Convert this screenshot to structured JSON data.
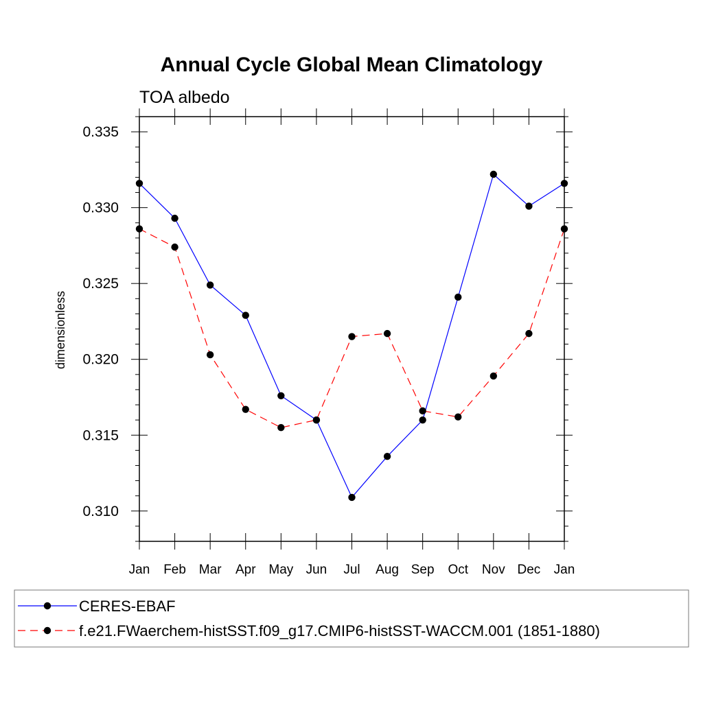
{
  "chart_data": {
    "type": "line",
    "title": "Annual Cycle Global Mean Climatology",
    "subtitle": "TOA albedo",
    "xlabel": "",
    "ylabel": "dimensionless",
    "categories": [
      "Jan",
      "Feb",
      "Mar",
      "Apr",
      "May",
      "Jun",
      "Jul",
      "Aug",
      "Sep",
      "Oct",
      "Nov",
      "Dec",
      "Jan"
    ],
    "ylim": [
      0.308,
      0.336
    ],
    "yticks": [
      "0.310",
      "0.315",
      "0.320",
      "0.325",
      "0.330",
      "0.335"
    ],
    "grid": false,
    "legend_position": "bottom",
    "series": [
      {
        "name": "CERES-EBAF",
        "color": "#0000ff",
        "line_style": "solid",
        "marker": "filled-circle",
        "values": [
          0.3316,
          0.3293,
          0.3249,
          0.3229,
          0.3176,
          0.316,
          0.3109,
          0.3136,
          0.316,
          0.3241,
          0.3322,
          0.3301,
          0.3316
        ]
      },
      {
        "name": "f.e21.FWaerchem-histSST.f09_g17.CMIP6-histSST-WACCM.001 (1851-1880)",
        "color": "#ff0000",
        "line_style": "dashed",
        "marker": "filled-circle",
        "values": [
          0.3286,
          0.3274,
          0.3203,
          0.3167,
          0.3155,
          0.316,
          0.3215,
          0.3217,
          0.3166,
          0.3162,
          0.3189,
          0.3217,
          0.3286
        ]
      }
    ]
  }
}
